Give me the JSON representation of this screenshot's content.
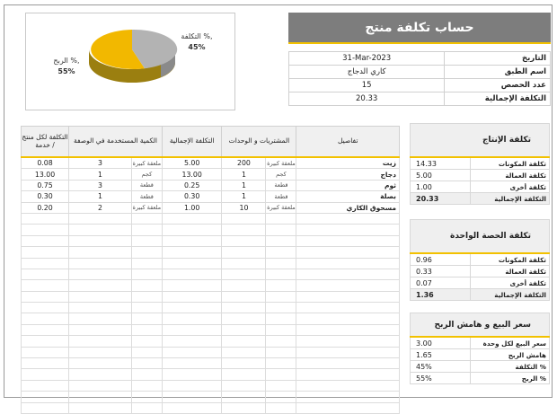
{
  "title": "حساب تكلفة منتج",
  "info": [
    {
      "label": "التاريخ",
      "value": "31-Mar-2023"
    },
    {
      "label": "اسم الطبق",
      "value": "كاري الدجاج"
    },
    {
      "label": "عدد الحصص",
      "value": "15"
    },
    {
      "label": "التكلفة الإجمالية",
      "value": "20.33"
    }
  ],
  "pie": {
    "slices": [
      {
        "label": "الربح %,",
        "pct": "55%",
        "value": 55,
        "color": "#f2b800"
      },
      {
        "label": "التكلفة %,",
        "pct": "45%",
        "value": 45,
        "color": "#b3b3b3"
      }
    ]
  },
  "table": {
    "headers": [
      "تفاصيل",
      "المشتريات و الوحدات",
      "",
      "التكلفة الإجمالية",
      "الكمية المستخدمة في الوصفة",
      "",
      "التكلفة لكل منتج / خدمة"
    ],
    "rows": [
      {
        "name": "زيت",
        "pq": "200",
        "pu": "ملعقة كبيرة",
        "total": "5.00",
        "uq": "3",
        "uu": "ملعقة كبيرة",
        "unit": "0.08"
      },
      {
        "name": "دجاج",
        "pq": "1",
        "pu": "كجم",
        "total": "13.00",
        "uq": "1",
        "uu": "كجم",
        "unit": "13.00"
      },
      {
        "name": "ثوم",
        "pq": "1",
        "pu": "قطعة",
        "total": "0.25",
        "uq": "3",
        "uu": "قطعة",
        "unit": "0.75"
      },
      {
        "name": "بصلة",
        "pq": "1",
        "pu": "قطعة",
        "total": "0.30",
        "uq": "1",
        "uu": "قطعة",
        "unit": "0.30"
      },
      {
        "name": "مسحوق الكاري",
        "pq": "10",
        "pu": "ملعقة كبيرة",
        "total": "1.00",
        "uq": "2",
        "uu": "ملعقة كبيرة",
        "unit": "0.20"
      }
    ]
  },
  "production": {
    "title": "تكلفة الإنتاج",
    "rows": [
      {
        "label": "تكلفة المكونات",
        "value": "14.33"
      },
      {
        "label": "تكلفة العمالة",
        "value": "5.00"
      },
      {
        "label": "تكلفة أخرى",
        "value": "1.00"
      }
    ],
    "total": {
      "label": "التكلفة الإجمالية",
      "value": "20.33"
    }
  },
  "portion": {
    "title": "تكلفة الحصة الواحدة",
    "rows": [
      {
        "label": "تكلفة المكونات",
        "value": "0.96"
      },
      {
        "label": "تكلفة العمالة",
        "value": "0.33"
      },
      {
        "label": "تكلفة أخرى",
        "value": "0.07"
      }
    ],
    "total": {
      "label": "التكلفة الإجمالية",
      "value": "1.36"
    }
  },
  "pricing": {
    "title": "سعر البيع و هامش الربح",
    "rows": [
      {
        "label": "سعر البيع لكل وحدة",
        "value": "3.00"
      },
      {
        "label": "هامش الربح",
        "value": "1.65"
      },
      {
        "label": "التكلفة %",
        "value": "45%"
      },
      {
        "label": "الربح %",
        "value": "55%"
      }
    ]
  },
  "colors": {
    "accent": "#f2c100",
    "header": "#7d7d7d"
  }
}
